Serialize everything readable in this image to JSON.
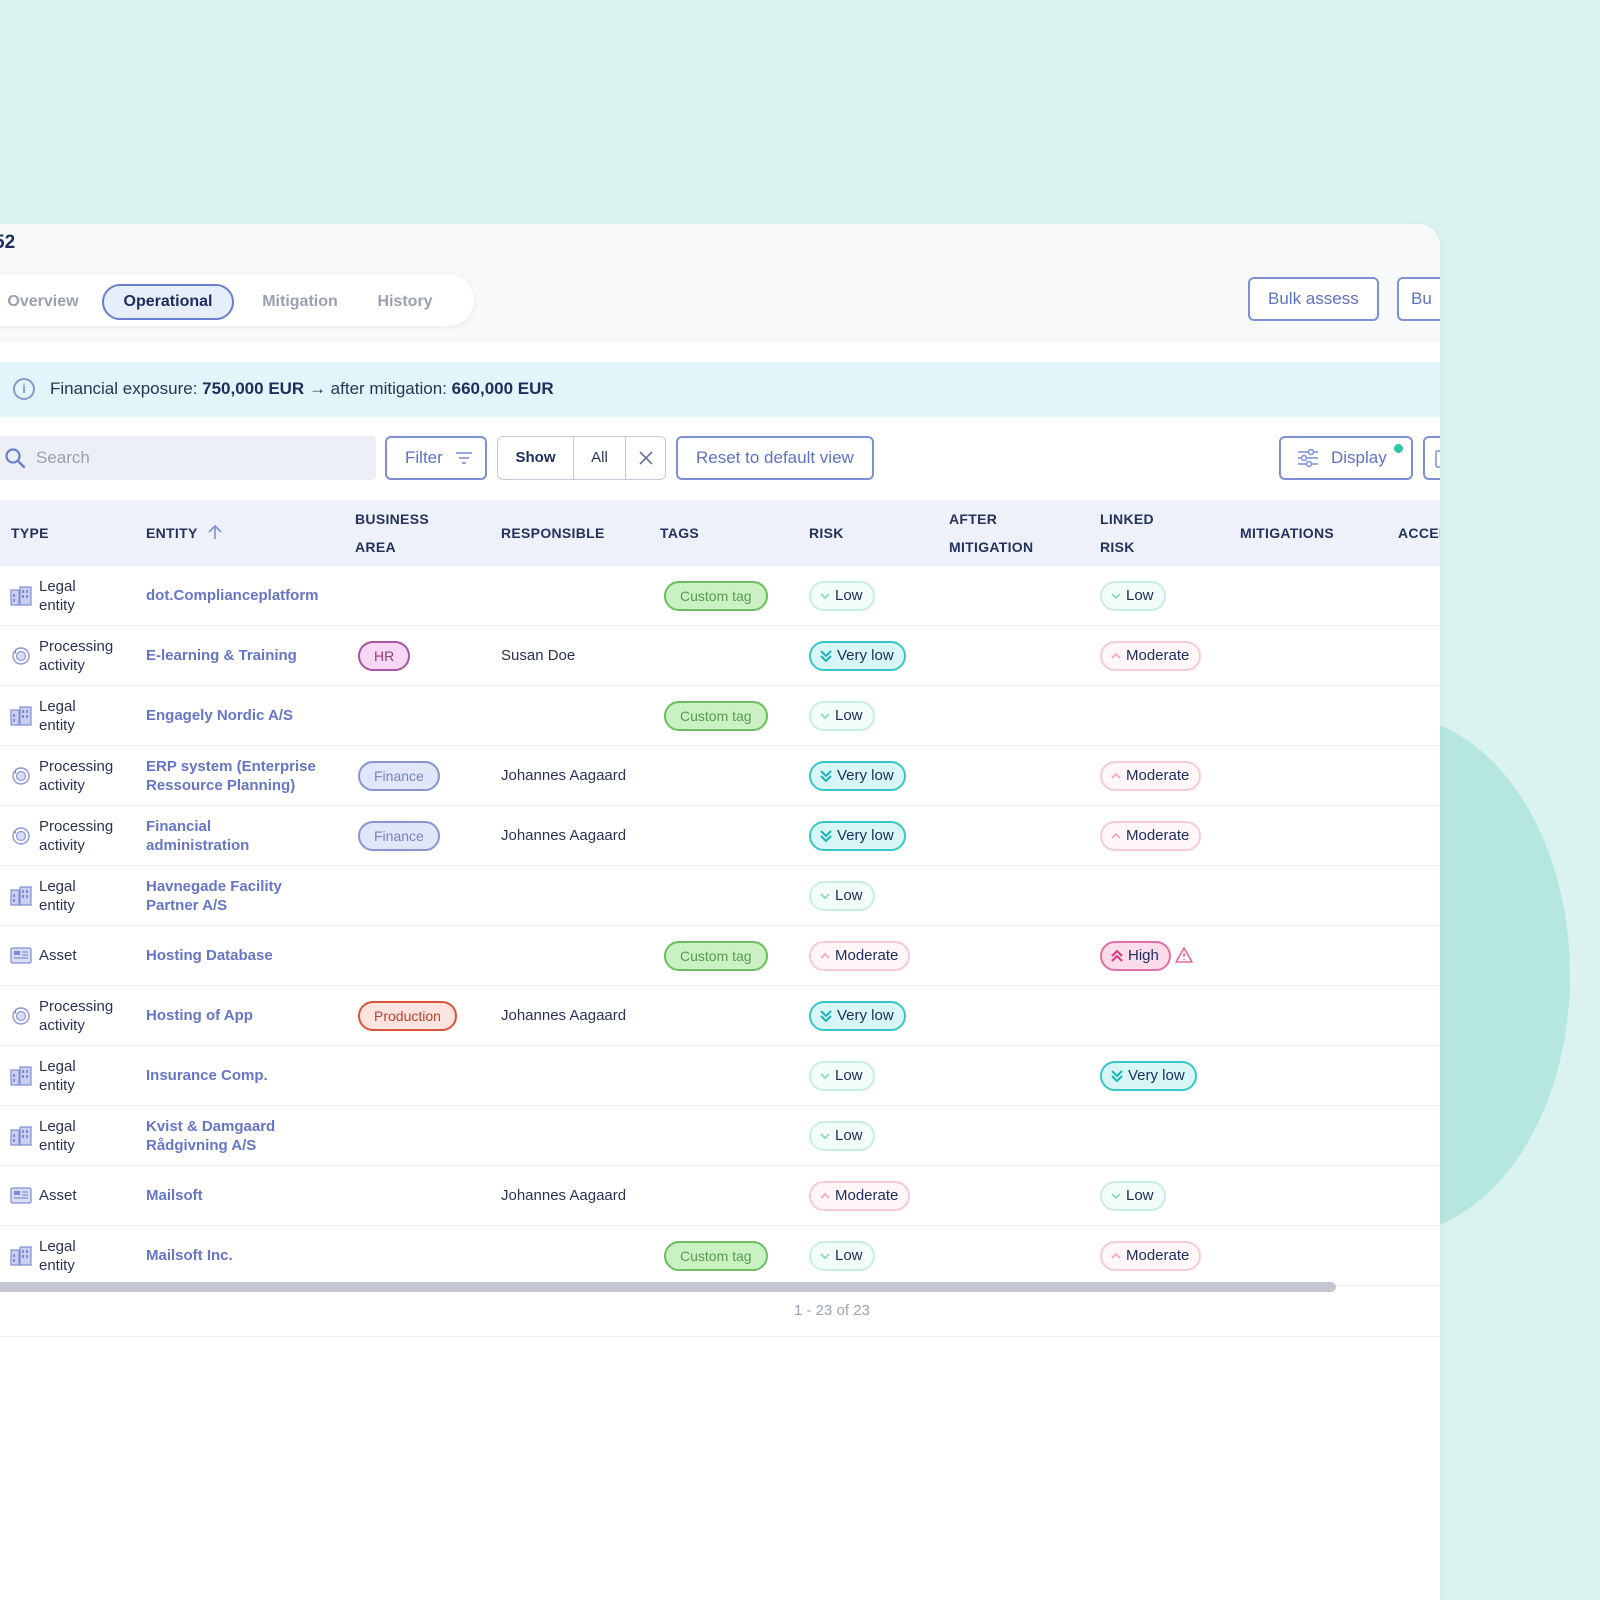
{
  "header": {
    "title_fragment": "52"
  },
  "tabs": [
    {
      "label": "Overview",
      "active": false
    },
    {
      "label": "Operational",
      "active": true
    },
    {
      "label": "Mitigation",
      "active": false
    },
    {
      "label": "History",
      "active": false
    }
  ],
  "actions": {
    "bulk_assess": "Bulk assess",
    "second_fragment": "Bu"
  },
  "info": {
    "prefix": "Financial exposure: ",
    "exposure": "750,000 EUR",
    "arrow": " → after mitigation: ",
    "after": "660,000 EUR"
  },
  "toolbar": {
    "search_placeholder": "Search",
    "filter": "Filter",
    "show": "Show",
    "all": "All",
    "reset": "Reset to default view",
    "display": "Display"
  },
  "columns": {
    "type": "TYPE",
    "entity": "ENTITY",
    "business_area_1": "BUSINESS",
    "business_area_2": "AREA",
    "responsible": "RESPONSIBLE",
    "tags": "TAGS",
    "risk": "RISK",
    "after_mitigation_1": "AFTER",
    "after_mitigation_2": "MITIGATION",
    "linked_risk_1": "LINKED",
    "linked_risk_2": "RISK",
    "mitigations": "MITIGATIONS",
    "accep": "ACCEP"
  },
  "rows": [
    {
      "type1": "Legal",
      "type2": "entity",
      "icon": "building-icon",
      "entity": "dot.Complianceplatform",
      "entity2": "",
      "area": "",
      "responsible": "",
      "tag": "Custom tag",
      "risk": "Low",
      "linked": "Low",
      "warn": false
    },
    {
      "type1": "Processing",
      "type2": "activity",
      "icon": "process-icon",
      "entity": "E-learning & Training",
      "entity2": "",
      "area": "HR",
      "responsible": "Susan Doe",
      "tag": "",
      "risk": "Very low",
      "linked": "Moderate",
      "warn": false
    },
    {
      "type1": "Legal",
      "type2": "entity",
      "icon": "building-icon",
      "entity": "Engagely Nordic A/S",
      "entity2": "",
      "area": "",
      "responsible": "",
      "tag": "Custom tag",
      "risk": "Low",
      "linked": "",
      "warn": false
    },
    {
      "type1": "Processing",
      "type2": "activity",
      "icon": "process-icon",
      "entity": "ERP system (Enterprise",
      "entity2": "Ressource Planning)",
      "area": "Finance",
      "responsible": "Johannes Aagaard",
      "tag": "",
      "risk": "Very low",
      "linked": "Moderate",
      "warn": false
    },
    {
      "type1": "Processing",
      "type2": "activity",
      "icon": "process-icon",
      "entity": "Financial",
      "entity2": "administration",
      "area": "Finance",
      "responsible": "Johannes Aagaard",
      "tag": "",
      "risk": "Very low",
      "linked": "Moderate",
      "warn": false
    },
    {
      "type1": "Legal",
      "type2": "entity",
      "icon": "building-icon",
      "entity": "Havnegade Facility",
      "entity2": "Partner A/S",
      "area": "",
      "responsible": "",
      "tag": "",
      "risk": "Low",
      "linked": "",
      "warn": false
    },
    {
      "type1": "Asset",
      "type2": "",
      "icon": "asset-icon",
      "entity": "Hosting Database",
      "entity2": "",
      "area": "",
      "responsible": "",
      "tag": "Custom tag",
      "risk": "Moderate",
      "linked": "High",
      "warn": true
    },
    {
      "type1": "Processing",
      "type2": "activity",
      "icon": "process-icon",
      "entity": "Hosting of App",
      "entity2": "",
      "area": "Production",
      "responsible": "Johannes Aagaard",
      "tag": "",
      "risk": "Very low",
      "linked": "",
      "warn": false
    },
    {
      "type1": "Legal",
      "type2": "entity",
      "icon": "building-icon",
      "entity": "Insurance Comp.",
      "entity2": "",
      "area": "",
      "responsible": "",
      "tag": "",
      "risk": "Low",
      "linked": "Very low",
      "warn": false
    },
    {
      "type1": "Legal",
      "type2": "entity",
      "icon": "building-icon",
      "entity": "Kvist & Damgaard",
      "entity2": "Rådgivning A/S",
      "area": "",
      "responsible": "",
      "tag": "",
      "risk": "Low",
      "linked": "",
      "warn": false
    },
    {
      "type1": "Asset",
      "type2": "",
      "icon": "asset-icon",
      "entity": "Mailsoft",
      "entity2": "",
      "area": "",
      "responsible": "Johannes Aagaard",
      "tag": "",
      "risk": "Moderate",
      "linked": "Low",
      "warn": false
    },
    {
      "type1": "Legal",
      "type2": "entity",
      "icon": "building-icon",
      "entity": "Mailsoft Inc.",
      "entity2": "",
      "area": "",
      "responsible": "",
      "tag": "Custom tag",
      "risk": "Low",
      "linked": "Moderate",
      "warn": false
    }
  ],
  "pagination": "1 - 23 of 23",
  "colors": {
    "accent": "#6a7fcf",
    "very_low": "#39c6c6",
    "moderate": "#f6cbd8",
    "high": "#e26fa3",
    "tag": "#6bbd5f"
  }
}
